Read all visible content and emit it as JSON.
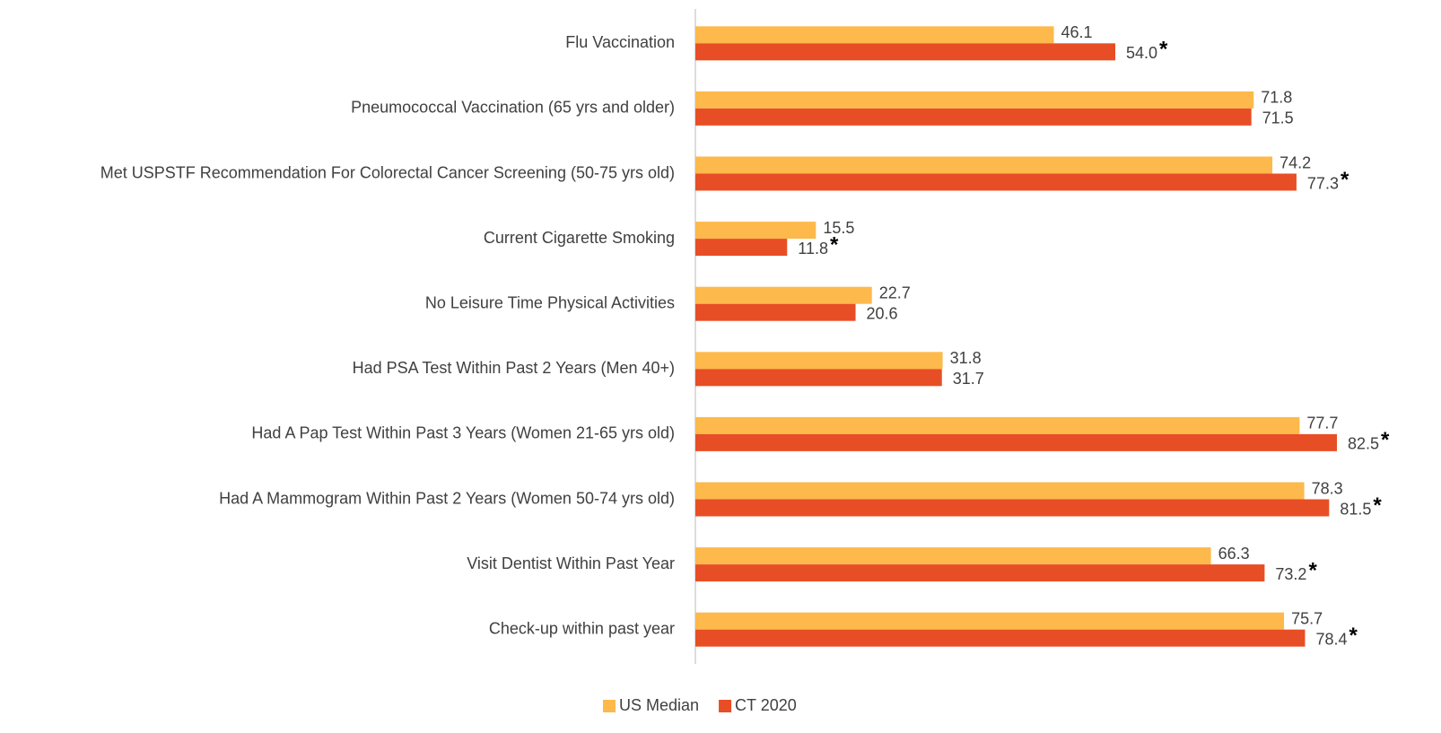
{
  "chart_data": {
    "type": "barh",
    "categories": [
      "Flu Vaccination",
      "Pneumococcal Vaccination (65 yrs and older)",
      "Met USPSTF Recommendation For Colorectal Cancer Screening (50-75 yrs old)",
      "Current Cigarette Smoking",
      "No Leisure Time Physical Activities",
      "Had PSA Test Within Past 2 Years (Men 40+)",
      "Had A Pap Test Within Past 3 Years (Women 21-65 yrs old)",
      "Had A Mammogram Within Past 2 Years (Women 50-74 yrs old)",
      "Visit Dentist Within Past Year",
      "Check-up within past year"
    ],
    "series": [
      {
        "name": "US Median",
        "color": "#fdb94b",
        "values": [
          46.1,
          71.8,
          74.2,
          15.5,
          22.7,
          31.8,
          77.7,
          78.3,
          66.3,
          75.7
        ],
        "value_labels": [
          "46.1",
          "71.8",
          "74.2",
          "15.5",
          "22.7",
          "31.8",
          "77.7",
          "78.3",
          "66.3",
          "75.7"
        ]
      },
      {
        "name": "CT 2020",
        "color": "#e84e25",
        "values": [
          54.0,
          71.5,
          77.3,
          11.8,
          20.6,
          31.7,
          82.5,
          81.5,
          73.2,
          78.4
        ],
        "value_labels": [
          "54.0",
          "71.5",
          "77.3",
          "11.8",
          "20.6",
          "31.7",
          "82.5",
          "81.5",
          "73.2",
          "78.4"
        ],
        "flags": [
          "*",
          null,
          "*",
          "*",
          null,
          null,
          "*",
          "*",
          "*",
          "*"
        ]
      }
    ],
    "xlim": [
      0,
      90
    ],
    "legend": "bottom"
  }
}
